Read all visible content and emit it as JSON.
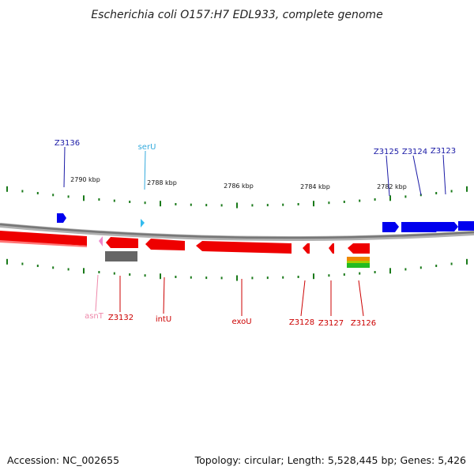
{
  "title": "Escherichia coli O157:H7 EDL933, complete genome",
  "scale_labels": [
    "2790 kbp",
    "2788 kbp",
    "2786 kbp",
    "2784 kbp",
    "2782 kbp"
  ],
  "genes": {
    "top": [
      {
        "label": "Z3136",
        "color": "#1a1aa6"
      },
      {
        "label": "serU",
        "color": "#33aadd"
      },
      {
        "label": "Z3125",
        "color": "#1a1aa6"
      },
      {
        "label": "Z3124",
        "color": "#1a1aa6"
      },
      {
        "label": "Z3123",
        "color": "#1a1aa6"
      }
    ],
    "bottom": [
      {
        "label": "asnT",
        "color": "#ee88aa"
      },
      {
        "label": "Z3132",
        "color": "#cc0000"
      },
      {
        "label": "intU",
        "color": "#cc0000"
      },
      {
        "label": "exoU",
        "color": "#cc0000"
      },
      {
        "label": "Z3128",
        "color": "#cc0000"
      },
      {
        "label": "Z3127",
        "color": "#cc0000"
      },
      {
        "label": "Z3126",
        "color": "#cc0000"
      }
    ]
  },
  "colors": {
    "forward_gene": "#0000ee",
    "reverse_gene": "#ee0000",
    "trna_forward": "#33bbee",
    "trna_reverse": "#ee88cc",
    "other_feature": "#666666",
    "tick": "#1a7a1a",
    "backbone": "#888888"
  },
  "footer": {
    "accession": "Accession: NC_002655",
    "info": "Topology: circular; Length: 5,528,445 bp; Genes: 5,426"
  }
}
